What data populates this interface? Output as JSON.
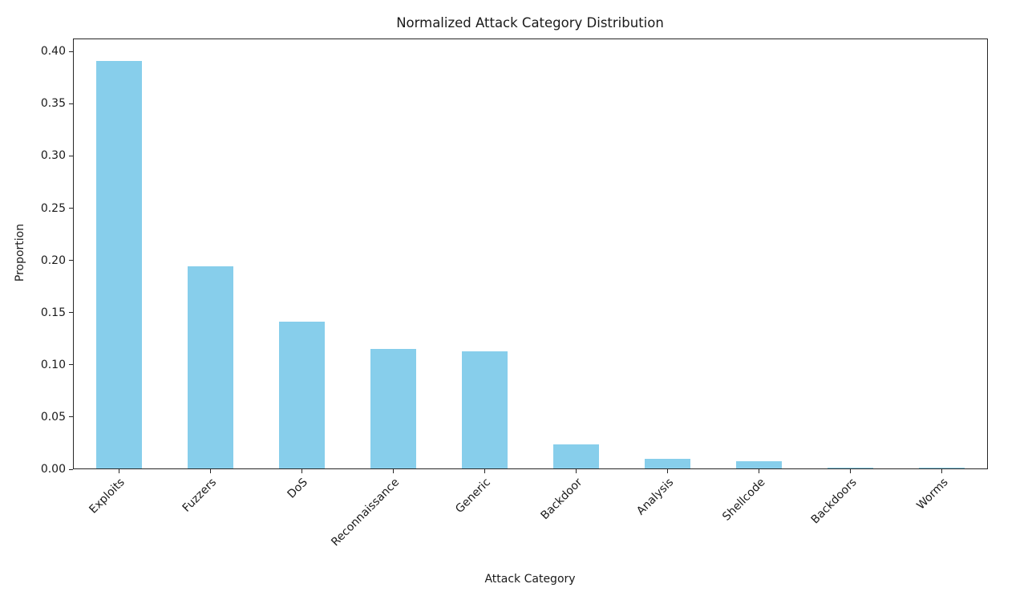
{
  "chart_data": {
    "type": "bar",
    "title": "Normalized Attack Category Distribution",
    "xlabel": "Attack Category",
    "ylabel": "Proportion",
    "categories": [
      "Exploits",
      "Fuzzers",
      "DoS",
      "Reconnaissance",
      "Generic",
      "Backdoor",
      "Analysis",
      "Shellcode",
      "Backdoors",
      "Worms"
    ],
    "values": [
      0.391,
      0.194,
      0.141,
      0.115,
      0.113,
      0.024,
      0.01,
      0.008,
      0.0015,
      0.0013
    ],
    "yticks": [
      0.0,
      0.05,
      0.1,
      0.15,
      0.2,
      0.25,
      0.3,
      0.35,
      0.4
    ],
    "ytick_labels": [
      "0.00",
      "0.05",
      "0.10",
      "0.15",
      "0.20",
      "0.25",
      "0.30",
      "0.35",
      "0.40"
    ],
    "ylim": [
      0,
      0.4125
    ],
    "xtick_rotation_deg": 45,
    "grid": false,
    "legend": null,
    "bar_color": "#87CEEB",
    "spine_color": "#262626",
    "text_color": "#1a1a1a",
    "background_color": "#ffffff"
  }
}
